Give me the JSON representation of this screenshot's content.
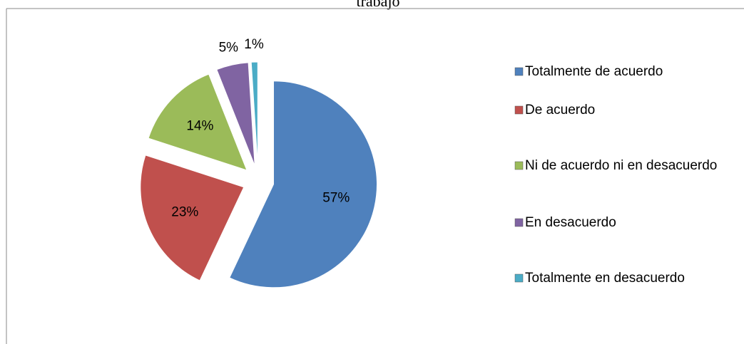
{
  "chart_data": {
    "type": "pie",
    "title": "trabajo",
    "categories": [
      "Totalmente de acuerdo",
      "De acuerdo",
      "Ni de acuerdo ni en desacuerdo",
      "En desacuerdo",
      "Totalmente en desacuerdo"
    ],
    "values": [
      57,
      23,
      14,
      5,
      1
    ],
    "value_labels": [
      "57%",
      "23%",
      "14%",
      "5%",
      "1%"
    ],
    "colors": [
      "#4f81bd",
      "#c0504d",
      "#9bbb59",
      "#8064a2",
      "#4bacc6"
    ],
    "exploded": true,
    "legend": "right"
  }
}
